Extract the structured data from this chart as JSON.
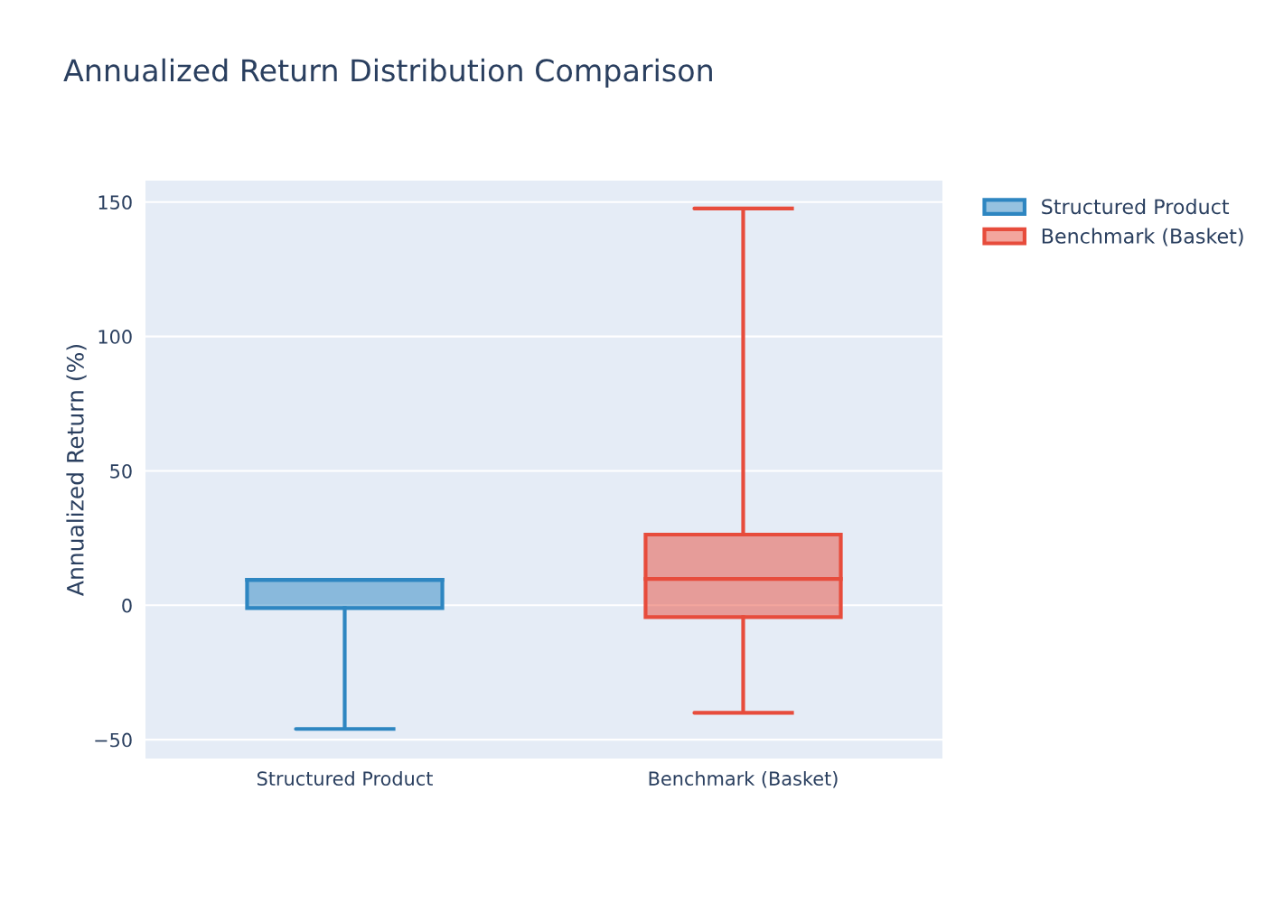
{
  "chart_data": {
    "type": "box",
    "title": "Annualized Return Distribution Comparison",
    "ylabel": "Annualized Return (%)",
    "categories": [
      "Structured Product",
      "Benchmark (Basket)"
    ],
    "series": [
      {
        "name": "Structured Product",
        "color": "#2e86c1",
        "boxes": [
          {
            "low": -46,
            "q1": -1,
            "median": 9.5,
            "q3": 9.5,
            "high": 9.5
          },
          null
        ]
      },
      {
        "name": "Benchmark (Basket)",
        "color": "#e74c3c",
        "boxes": [
          null,
          {
            "low": -40,
            "q1": -4.4,
            "median": 9.8,
            "q3": 26.3,
            "high": 147.6
          }
        ]
      }
    ],
    "ylim": [
      -57,
      158
    ],
    "yticks": [
      -50,
      0,
      50,
      100,
      150
    ],
    "grid": "y",
    "legend": "right"
  }
}
